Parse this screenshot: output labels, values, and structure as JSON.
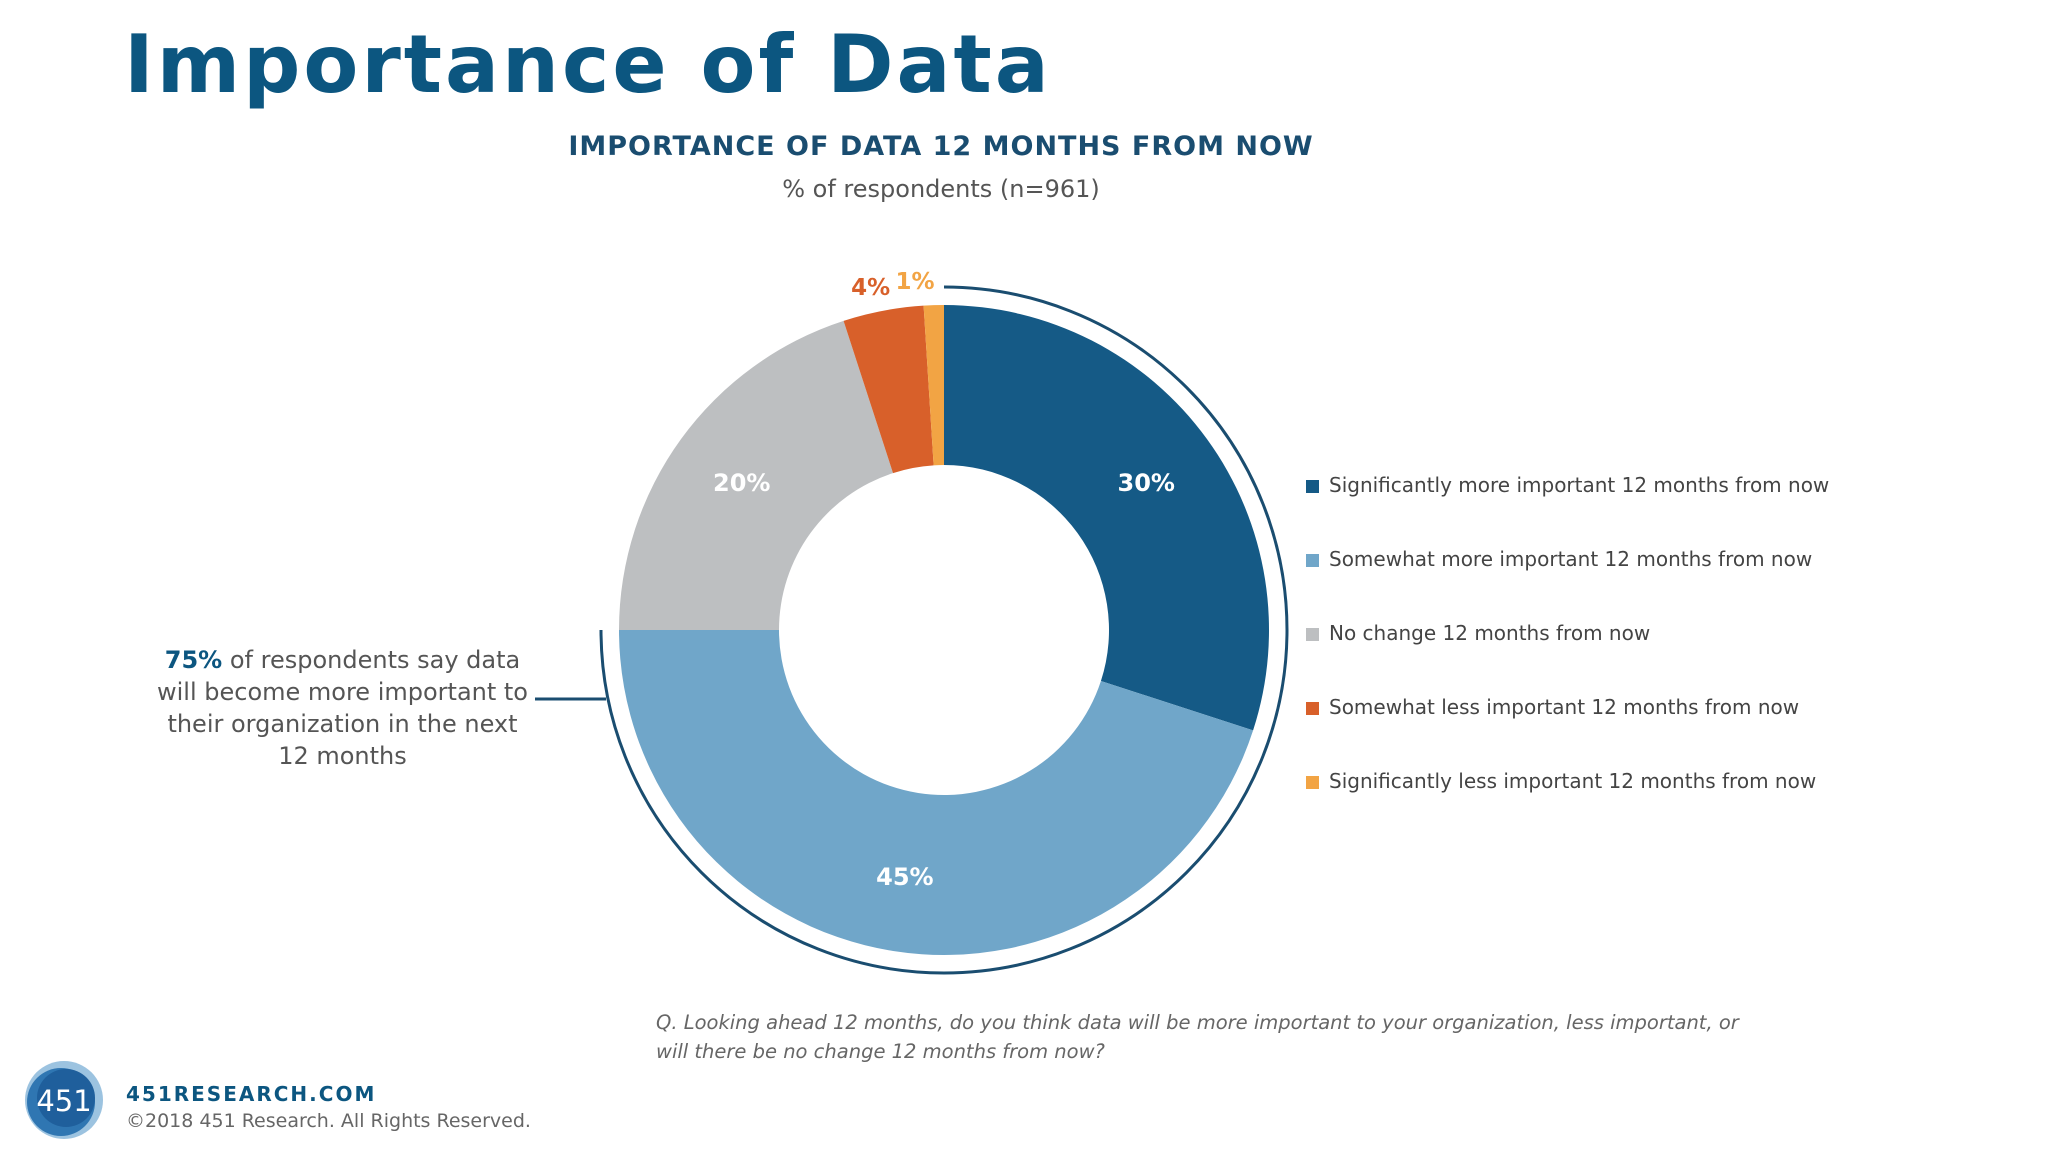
{
  "page": {
    "title": "Importance of Data"
  },
  "chart_data": {
    "type": "pie",
    "style": "donut",
    "title": "IMPORTANCE OF DATA 12 MONTHS FROM NOW",
    "subtitle": "% of respondents (n=961)",
    "value_suffix": "%",
    "legend_position": "right",
    "categories": [
      "Significantly more important 12 months from now",
      "Somewhat more important 12 months from now",
      "No change 12 months from now",
      "Somewhat less important 12 months from now",
      "Significantly less important 12 months from now"
    ],
    "values": [
      30,
      45,
      20,
      4,
      1
    ],
    "colors": [
      "#155a86",
      "#70a6c9",
      "#bdbfc1",
      "#d8602a",
      "#f2a444"
    ]
  },
  "callout": {
    "highlight": "75%",
    "text": " of respondents say data will become more important to their organization in the next 12 months"
  },
  "question": "Q. Looking ahead 12 months, do you think data will be more important to your organization, less important, or will there be no change 12 months from now?",
  "footer": {
    "logo_text": "451",
    "site": "451RESEARCH.COM",
    "copyright": "©2018 451 Research. All Rights Reserved."
  }
}
